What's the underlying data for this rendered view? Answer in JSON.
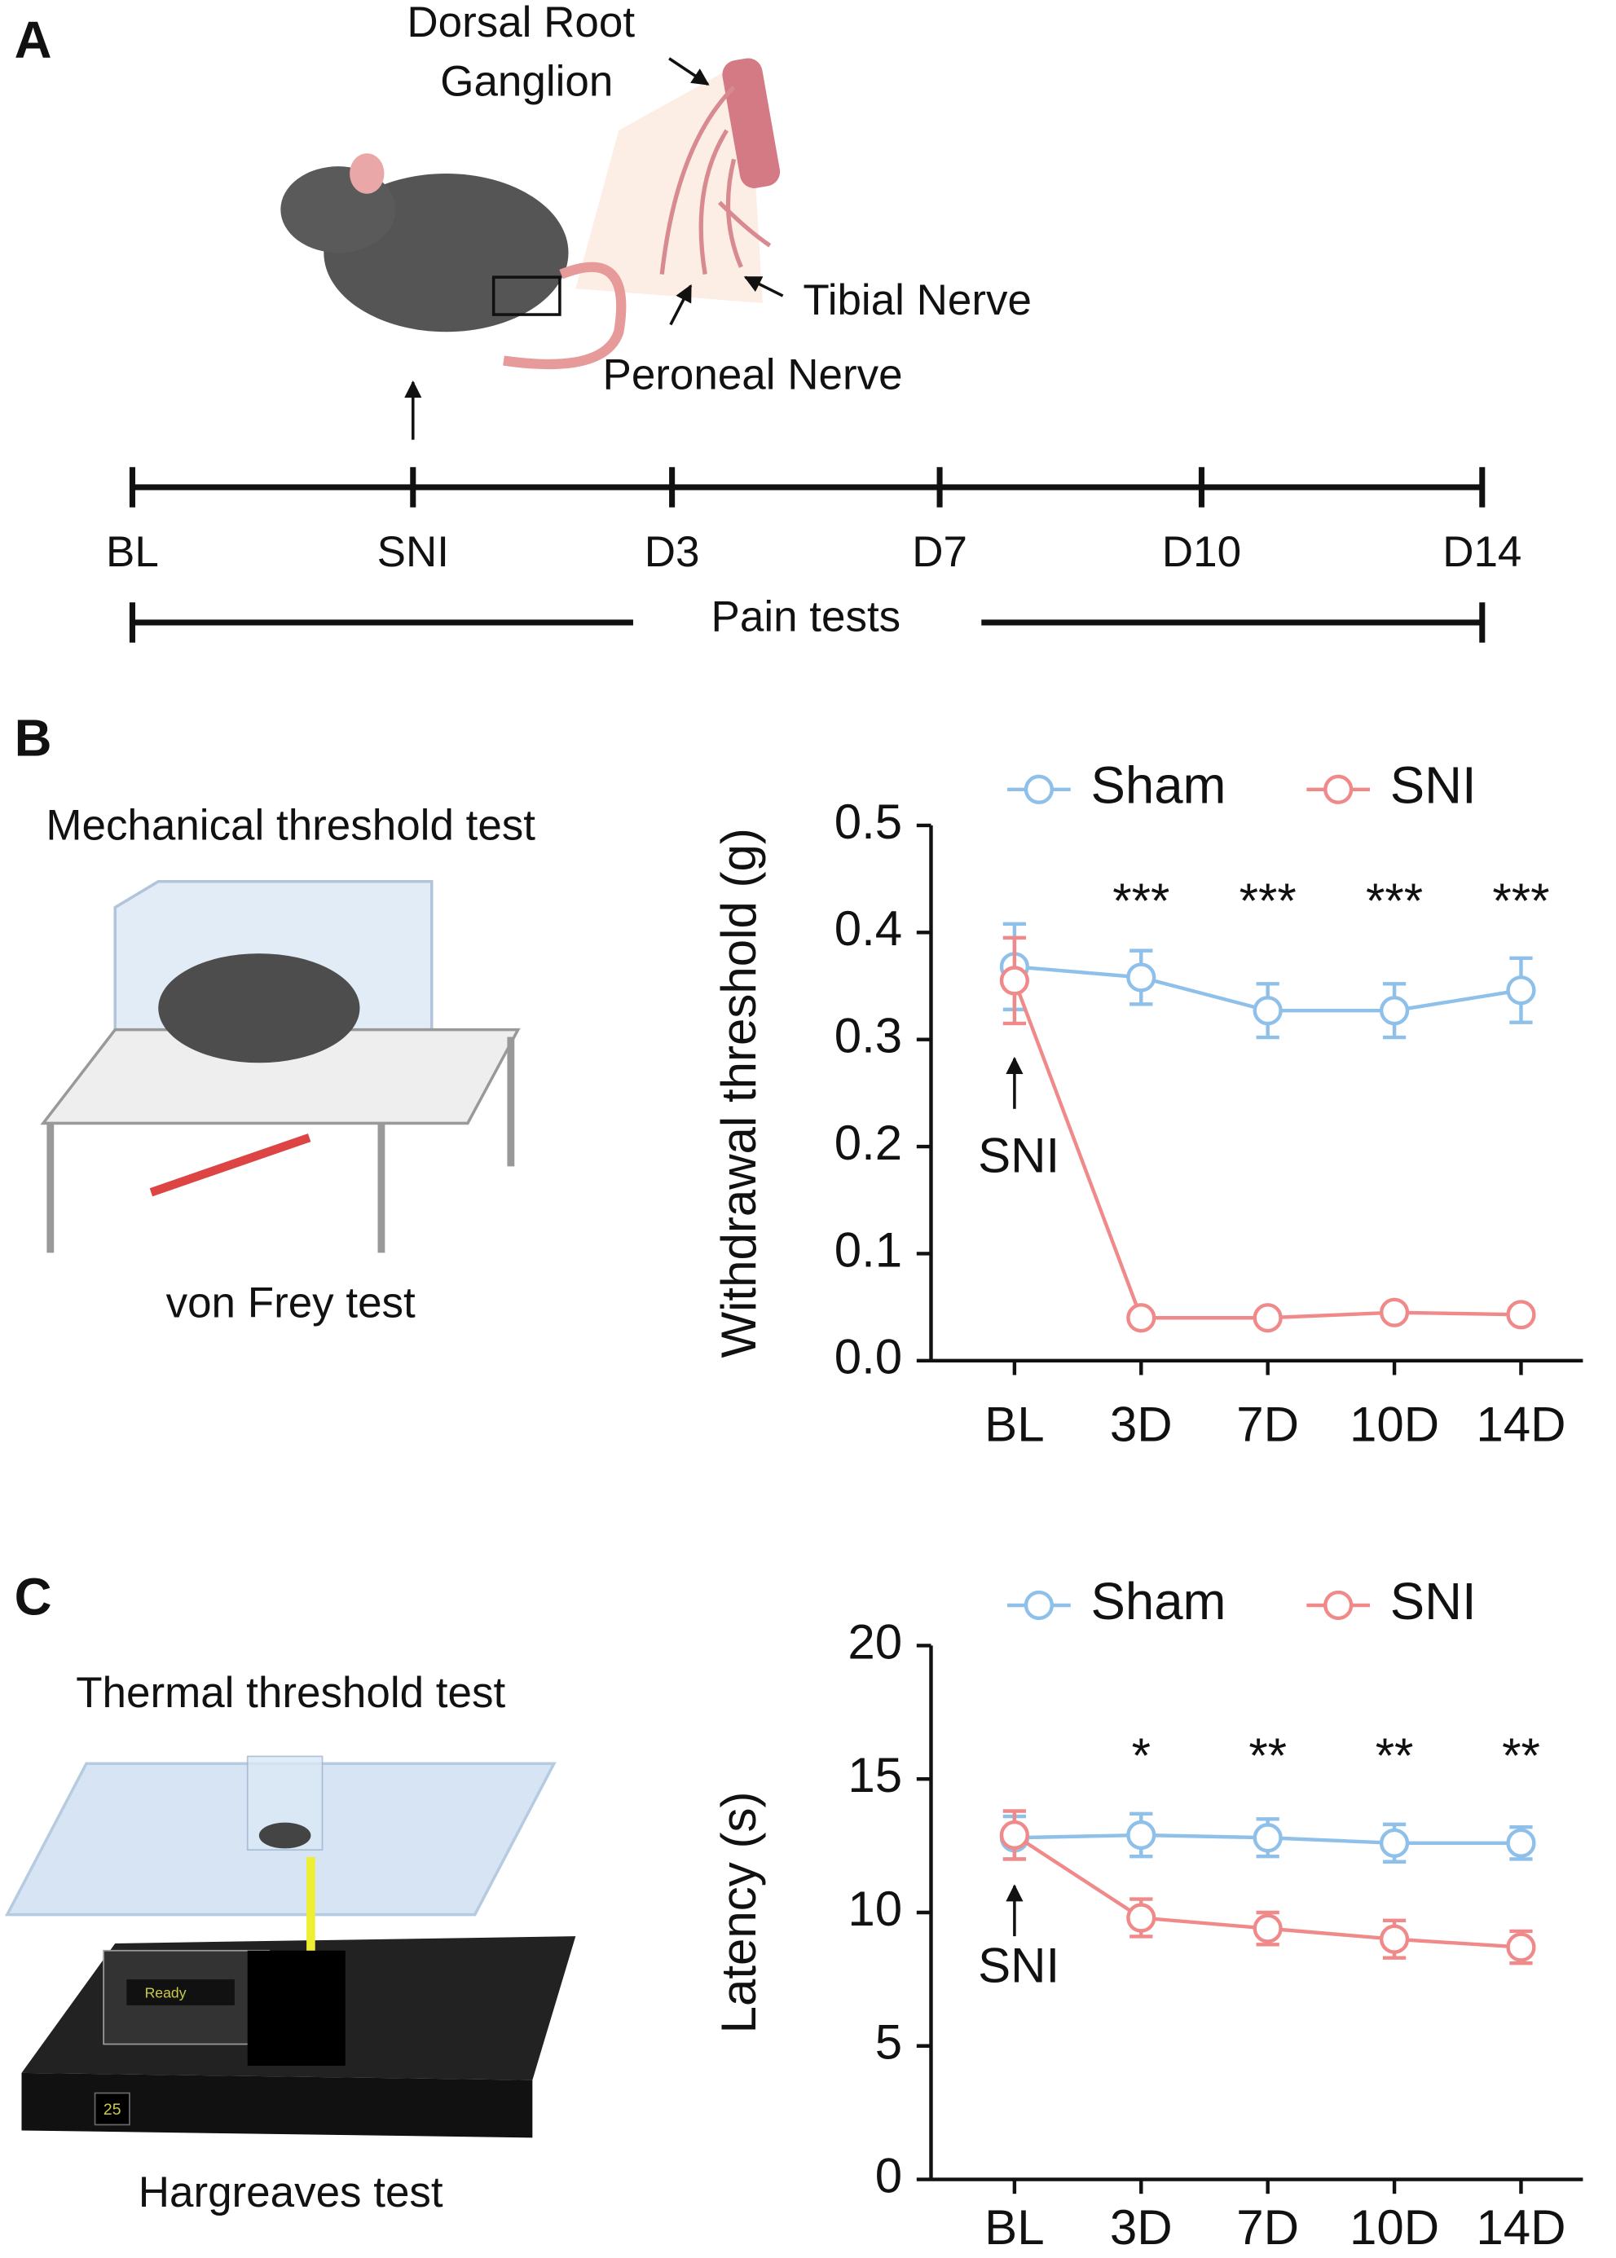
{
  "panels": {
    "A": {
      "label": "A",
      "drg_line1": "Dorsal Root",
      "drg_line2": "Ganglion",
      "tibial": "Tibial Nerve",
      "peroneal": "Peroneal Nerve",
      "timeline": [
        "BL",
        "SNI",
        "D3",
        "D7",
        "D10",
        "D14"
      ],
      "caption": "Pain tests"
    },
    "B": {
      "label": "B",
      "title": "Mechanical threshold test",
      "subtitle": "von Frey test"
    },
    "C": {
      "label": "C",
      "title": "Thermal threshold test",
      "subtitle": "Hargreaves test",
      "display": "Ready",
      "counter": "25"
    }
  },
  "chart_data": [
    {
      "type": "line",
      "y_label": "Withdrawal threshold (g)",
      "categories": [
        "BL",
        "3D",
        "7D",
        "10D",
        "14D"
      ],
      "ylim": [
        0,
        0.5
      ],
      "yticks": [
        {
          "value": 0,
          "label": "0.0"
        },
        0.1,
        0.2,
        0.3,
        0.4,
        0.5
      ],
      "series": [
        {
          "name": "Sham",
          "color": "#8ec0ea",
          "values": [
            0.368,
            0.358,
            0.327,
            0.327,
            0.346
          ],
          "errors": [
            0.04,
            0.025,
            0.025,
            0.025,
            0.03
          ]
        },
        {
          "name": "SNI",
          "color": "#f08a8a",
          "values": [
            0.355,
            0.04,
            0.04,
            0.045,
            0.043
          ],
          "errors": [
            0.04,
            0.004,
            0.004,
            0.004,
            0.004
          ]
        }
      ],
      "significance_labels": [
        null,
        "***",
        "***",
        "***",
        "***"
      ],
      "arrow_label": "SNI"
    },
    {
      "type": "line",
      "y_label": "Latency (s)",
      "categories": [
        "BL",
        "3D",
        "7D",
        "10D",
        "14D"
      ],
      "ylim": [
        0,
        20
      ],
      "yticks": [
        0,
        5,
        10,
        15,
        20
      ],
      "series": [
        {
          "name": "Sham",
          "color": "#8ec0ea",
          "values": [
            12.8,
            12.9,
            12.8,
            12.6,
            12.6
          ],
          "errors": [
            0.8,
            0.8,
            0.7,
            0.7,
            0.6
          ]
        },
        {
          "name": "SNI",
          "color": "#f08a8a",
          "values": [
            12.9,
            9.8,
            9.4,
            9.0,
            8.7
          ],
          "errors": [
            0.9,
            0.7,
            0.6,
            0.7,
            0.6
          ]
        }
      ],
      "significance_labels": [
        null,
        "*",
        "**",
        "**",
        "**"
      ],
      "arrow_label": "SNI"
    }
  ]
}
